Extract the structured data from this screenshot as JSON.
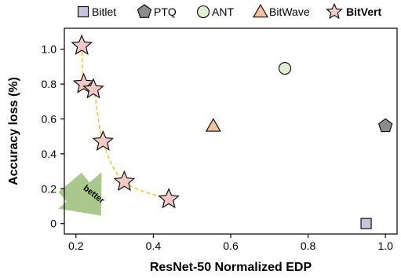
{
  "chart_data": {
    "type": "scatter",
    "title": "",
    "xlabel": "ResNet-50 Normalized EDP",
    "ylabel": "Accuracy loss (%)",
    "xlim": [
      0.17,
      1.03
    ],
    "ylim": [
      -0.06,
      1.12
    ],
    "xticks": [
      0.2,
      0.4,
      0.6,
      0.8,
      1.0
    ],
    "xtick_labels": [
      "0.2",
      "0.4",
      "0.6",
      "0.8",
      "1.0"
    ],
    "yticks": [
      0,
      0.2,
      0.4,
      0.6,
      0.8,
      1.0
    ],
    "ytick_labels": [
      "0",
      "0.2",
      "0.4",
      "0.6",
      "0.8",
      "1.0"
    ],
    "grid": false,
    "legend_position": "top",
    "series": [
      {
        "name": "Bitlet",
        "marker": "square",
        "color": "#C9C3DF",
        "points": [
          [
            0.95,
            0.0
          ]
        ]
      },
      {
        "name": "PTQ",
        "marker": "pentagon",
        "color": "#8C8C8C",
        "points": [
          [
            1.0,
            0.56
          ]
        ]
      },
      {
        "name": "ANT",
        "marker": "circle",
        "color": "#E0EFD0",
        "points": [
          [
            0.74,
            0.89
          ]
        ]
      },
      {
        "name": "BitWave",
        "marker": "triangle",
        "color": "#F5C09C",
        "points": [
          [
            0.555,
            0.56
          ]
        ]
      },
      {
        "name": "BitVert",
        "marker": "star",
        "color": "#F3C9C6",
        "bold": true,
        "points": [
          [
            0.215,
            1.02
          ],
          [
            0.22,
            0.8
          ],
          [
            0.245,
            0.77
          ],
          [
            0.27,
            0.47
          ],
          [
            0.325,
            0.24
          ],
          [
            0.44,
            0.14
          ]
        ]
      }
    ],
    "trend_line": {
      "style": "dashed",
      "color": "#F0C832",
      "points": [
        [
          0.215,
          1.02
        ],
        [
          0.22,
          0.8
        ],
        [
          0.245,
          0.77
        ],
        [
          0.27,
          0.47
        ],
        [
          0.325,
          0.24
        ],
        [
          0.44,
          0.14
        ]
      ]
    },
    "annotation": {
      "text": "better",
      "color": "#A9C98C"
    }
  }
}
